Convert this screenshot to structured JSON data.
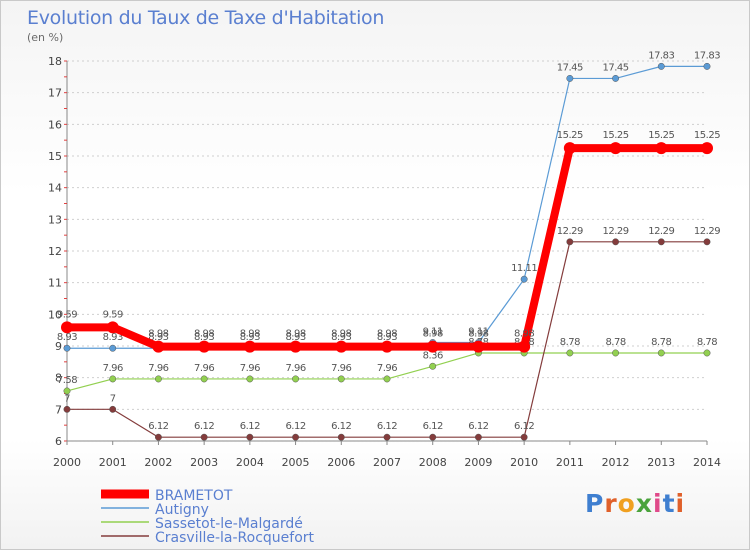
{
  "header": {
    "title": "Evolution du Taux de Taxe d'Habitation",
    "unit": "(en %)"
  },
  "logo": {
    "text": "Proxiti",
    "colors": [
      "#3f7fd0",
      "#e0602a",
      "#f0a020",
      "#4aa33c",
      "#e04a8a",
      "#3f7fd0",
      "#e0602a"
    ]
  },
  "chart_data": {
    "type": "line",
    "title": "Evolution du Taux de Taxe d'Habitation",
    "ylabel": "(en %)",
    "x": [
      "2000",
      "2001",
      "2002",
      "2003",
      "2004",
      "2005",
      "2006",
      "2007",
      "2008",
      "2009",
      "2010",
      "2011",
      "2012",
      "2013",
      "2014"
    ],
    "ylim": [
      6,
      18
    ],
    "yticks": [
      "6",
      "7",
      "8",
      "9",
      "10",
      "11",
      "12",
      "13",
      "14",
      "15",
      "16",
      "17",
      "18"
    ],
    "legend_position": "bottom-left",
    "series": [
      {
        "name": "BRAMETOT",
        "color": "#ff0000",
        "width": 8,
        "values": [
          9.59,
          9.59,
          8.98,
          8.98,
          8.98,
          8.98,
          8.98,
          8.98,
          8.98,
          8.98,
          8.98,
          15.25,
          15.25,
          15.25,
          15.25
        ],
        "labels": [
          "9.59",
          "9.59",
          "8.98",
          "8.98",
          "8.98",
          "8.98",
          "8.98",
          "8.98",
          "8.98",
          "8.98",
          "8.98",
          "15.25",
          "15.25",
          "15.25",
          "15.25"
        ]
      },
      {
        "name": "Autigny",
        "color": "#5b9bd5",
        "width": 1.2,
        "values": [
          8.93,
          8.93,
          8.93,
          8.93,
          8.93,
          8.93,
          8.93,
          8.93,
          9.11,
          9.11,
          11.11,
          17.45,
          17.45,
          17.83,
          17.83
        ],
        "labels": [
          "8.93",
          "8.93",
          "8.93",
          "8.93",
          "8.93",
          "8.93",
          "8.93",
          "8.93",
          "9.11",
          "9.11",
          "11.11",
          "17.45",
          "17.45",
          "17.83",
          "17.83"
        ]
      },
      {
        "name": "Sassetot-le-Malgardé",
        "color": "#92d050",
        "width": 1.2,
        "values": [
          7.58,
          7.96,
          7.96,
          7.96,
          7.96,
          7.96,
          7.96,
          7.96,
          8.36,
          8.78,
          8.78,
          8.78,
          8.78,
          8.78,
          8.78
        ],
        "labels": [
          "7.58",
          "7.96",
          "7.96",
          "7.96",
          "7.96",
          "7.96",
          "7.96",
          "7.96",
          "8.36",
          "8.78",
          "8.78",
          "8.78",
          "8.78",
          "8.78",
          "8.78"
        ]
      },
      {
        "name": "Crasville-la-Rocquefort",
        "color": "#843c3c",
        "width": 1.2,
        "values": [
          7,
          7,
          6.12,
          6.12,
          6.12,
          6.12,
          6.12,
          6.12,
          6.12,
          6.12,
          6.12,
          12.29,
          12.29,
          12.29,
          12.29
        ],
        "labels": [
          "7",
          "7",
          "6.12",
          "6.12",
          "6.12",
          "6.12",
          "6.12",
          "6.12",
          "6.12",
          "6.12",
          "6.12",
          "12.29",
          "12.29",
          "12.29",
          "12.29"
        ]
      }
    ]
  }
}
